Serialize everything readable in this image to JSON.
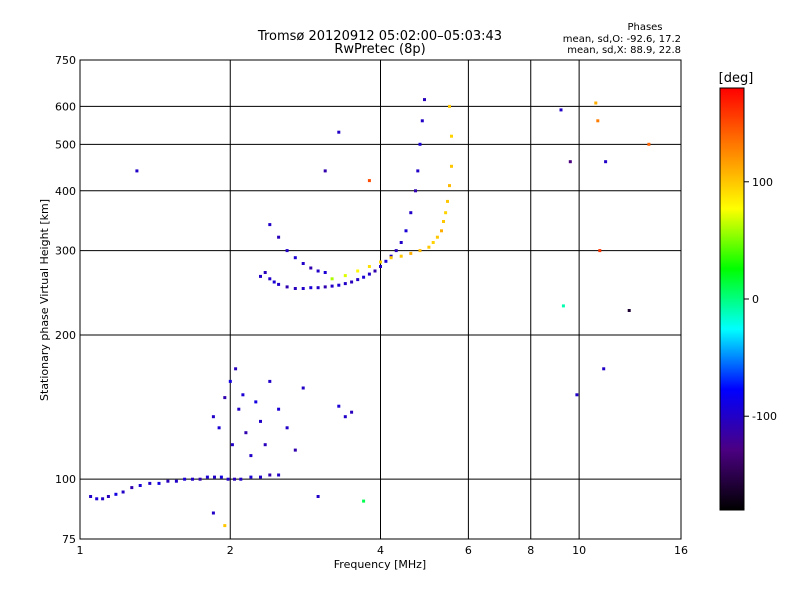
{
  "chart_data": {
    "type": "scatter",
    "title": "Tromsø 20120912 05:02:00–05:03:43",
    "subtitle": "RwPretec (8p)",
    "xlabel": "Frequency [MHz]",
    "ylabel": "Stationary phase Virtual Height [km]",
    "x_scale": "log",
    "y_scale": "log",
    "xlim": [
      1,
      16
    ],
    "ylim": [
      75,
      750
    ],
    "x_ticks": [
      1,
      2,
      4,
      6,
      8,
      10,
      16
    ],
    "x_tick_labels": [
      "1",
      "2",
      "4",
      "6",
      "8",
      "10",
      "16"
    ],
    "y_ticks": [
      75,
      100,
      200,
      300,
      400,
      500,
      600,
      750
    ],
    "y_tick_labels": [
      "75",
      "100",
      "200",
      "300",
      "400",
      "500",
      "600",
      "750"
    ],
    "grid": true,
    "phase_stats": {
      "heading": "Phases",
      "line_o": "mean, sd,O: -92.6, 17.2",
      "line_x": "mean, sd,X:  88.9, 22.8"
    },
    "colorbar": {
      "label": "[deg]",
      "range": [
        -180,
        180
      ],
      "ticks": [
        100,
        0,
        -100
      ],
      "tick_labels": [
        "100",
        "0",
        "-100"
      ],
      "colormap": [
        "#000000",
        "#4b0082",
        "#0000ff",
        "#00ffff",
        "#00ff00",
        "#ffff00",
        "#ff8000",
        "#ff0000"
      ]
    },
    "series": [
      {
        "x": [
          1.05,
          1.08,
          1.11,
          1.14,
          1.18,
          1.22,
          1.27,
          1.32,
          1.38,
          1.44,
          1.5,
          1.56,
          1.62,
          1.68,
          1.74,
          1.8,
          1.86,
          1.92,
          1.98,
          2.04,
          2.1,
          2.2,
          2.3,
          2.4,
          2.5
        ],
        "y": [
          92,
          91,
          91,
          92,
          93,
          94,
          96,
          97,
          98,
          98,
          99,
          99,
          100,
          100,
          100,
          101,
          101,
          101,
          100,
          100,
          100,
          101,
          101,
          102,
          102
        ],
        "phase": [
          -100,
          -95,
          -100,
          -105,
          -90,
          -100,
          -110,
          -95,
          -100,
          -90,
          -105,
          -100,
          -95,
          -100,
          -110,
          -95,
          -100,
          -90,
          -100,
          -105,
          -100,
          -95,
          -100,
          -110,
          -100
        ]
      },
      {
        "x": [
          1.85,
          1.9,
          1.95,
          2.0,
          2.02,
          2.05,
          2.08,
          2.12,
          2.15,
          2.2,
          2.25,
          2.3,
          2.35,
          2.4,
          2.5,
          2.6,
          2.7,
          2.8,
          3.3,
          3.4,
          3.5
        ],
        "y": [
          135,
          128,
          148,
          160,
          118,
          170,
          140,
          150,
          125,
          112,
          145,
          132,
          118,
          160,
          140,
          128,
          115,
          155,
          142,
          135,
          138
        ],
        "phase": [
          -100,
          -95,
          -110,
          -90,
          -100,
          -105,
          -100,
          -95,
          -110,
          -100,
          -90,
          -100,
          -105,
          -100,
          -95,
          -100,
          -110,
          -100,
          -95,
          -100,
          -105
        ]
      },
      {
        "x": [
          2.3,
          2.35,
          2.4,
          2.45,
          2.5,
          2.6,
          2.7,
          2.8,
          2.9,
          3.0,
          3.1,
          3.2,
          3.3,
          3.4,
          3.5,
          3.6,
          3.7,
          3.8,
          3.9,
          4.0,
          4.1,
          4.2,
          4.3,
          4.4,
          4.5,
          4.6,
          4.7,
          4.75,
          4.8,
          4.85,
          4.9
        ],
        "y": [
          265,
          270,
          262,
          258,
          255,
          252,
          250,
          250,
          251,
          251,
          252,
          253,
          254,
          256,
          258,
          261,
          264,
          268,
          272,
          278,
          285,
          292,
          300,
          312,
          330,
          360,
          400,
          440,
          500,
          560,
          620
        ],
        "phase": [
          -100,
          -105,
          -100,
          -95,
          -100,
          -110,
          -105,
          -100,
          -95,
          -100,
          -110,
          -100,
          -95,
          -100,
          -105,
          -100,
          -95,
          -100,
          -110,
          -100,
          -95,
          -100,
          -105,
          -100,
          -95,
          -100,
          -110,
          -100,
          -95,
          -100,
          -105
        ]
      },
      {
        "x": [
          2.4,
          2.5,
          2.6,
          2.7,
          2.8,
          2.9,
          3.0,
          3.1
        ],
        "y": [
          340,
          320,
          300,
          290,
          282,
          276,
          272,
          270
        ],
        "phase": [
          -100,
          -105,
          -100,
          -95,
          -100,
          -110,
          -100,
          -95
        ]
      },
      {
        "x": [
          3.2,
          3.4,
          3.6,
          3.8,
          4.0,
          4.2,
          4.4,
          4.6,
          4.8,
          5.0,
          5.1,
          5.2,
          5.3,
          5.35,
          5.4,
          5.45,
          5.5,
          5.55,
          5.55,
          5.5
        ],
        "y": [
          262,
          266,
          272,
          278,
          284,
          290,
          292,
          296,
          300,
          305,
          312,
          320,
          330,
          345,
          360,
          380,
          410,
          450,
          520,
          600
        ],
        "phase": [
          60,
          70,
          80,
          90,
          95,
          100,
          100,
          110,
          105,
          100,
          95,
          100,
          110,
          100,
          95,
          100,
          105,
          100,
          95,
          100
        ]
      },
      {
        "x": [
          1.3,
          1.85,
          1.95,
          3.0,
          3.1,
          3.3,
          3.7,
          3.8,
          9.2,
          9.3,
          9.6,
          11.0,
          11.3,
          12.6,
          9.9,
          10.8,
          10.9,
          13.8,
          11.2
        ],
        "y": [
          440,
          85,
          80,
          92,
          440,
          530,
          90,
          420,
          590,
          230,
          460,
          300,
          460,
          225,
          150,
          610,
          560,
          500,
          170
        ],
        "phase": [
          -100,
          -100,
          100,
          -100,
          -110,
          -100,
          10,
          150,
          -100,
          -10,
          -130,
          160,
          -100,
          -160,
          -100,
          110,
          130,
          140,
          -100
        ]
      }
    ]
  }
}
